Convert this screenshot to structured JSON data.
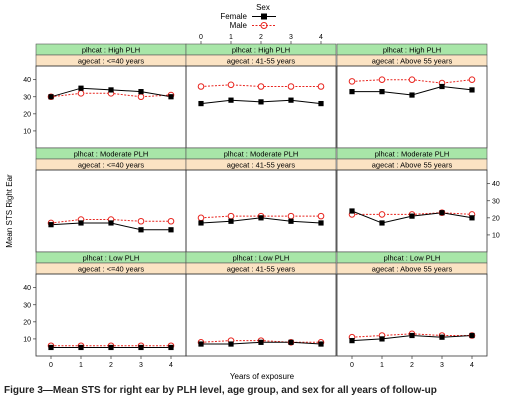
{
  "chart_data": {
    "type": "line",
    "legend": {
      "title": "Sex",
      "placement": "top-center",
      "entries": [
        {
          "name": "Female",
          "color": "#000000",
          "marker": "filled-square",
          "line": "solid"
        },
        {
          "name": "Male",
          "color": "#e8251f",
          "marker": "open-circle",
          "line": "dashed"
        }
      ]
    },
    "xlabel": "Years of exposure",
    "ylabel": "Mean STS Right Ear",
    "x": [
      0,
      1,
      2,
      3,
      4
    ],
    "x_ticks": [
      "0",
      "1",
      "2",
      "3",
      "4"
    ],
    "ylim": [
      0,
      48
    ],
    "y_ticks": [
      "10",
      "20",
      "30",
      "40"
    ],
    "y_tick_values": [
      10,
      20,
      30,
      40
    ],
    "strip_colors": {
      "plhcat": "#a8e6a8",
      "agecat": "#fbe3c3"
    },
    "panels": [
      {
        "plhcat": "plhcat : High PLH",
        "agecat": "agecat : <=40 years",
        "series": [
          {
            "name": "Female",
            "values": [
              30,
              35,
              34,
              33,
              30
            ]
          },
          {
            "name": "Male",
            "values": [
              30,
              32,
              32,
              30,
              31
            ]
          }
        ]
      },
      {
        "plhcat": "plhcat : High PLH",
        "agecat": "agecat : 41-55 years",
        "series": [
          {
            "name": "Female",
            "values": [
              26,
              28,
              27,
              28,
              26
            ]
          },
          {
            "name": "Male",
            "values": [
              36,
              37,
              36,
              36,
              36
            ]
          }
        ]
      },
      {
        "plhcat": "plhcat : High PLH",
        "agecat": "agecat : Above 55 years",
        "series": [
          {
            "name": "Female",
            "values": [
              33,
              33,
              31,
              36,
              34
            ]
          },
          {
            "name": "Male",
            "values": [
              39,
              40,
              40,
              38,
              40
            ]
          }
        ]
      },
      {
        "plhcat": "plhcat : Moderate PLH",
        "agecat": "agecat : <=40 years",
        "series": [
          {
            "name": "Female",
            "values": [
              16,
              17,
              17,
              13,
              13
            ]
          },
          {
            "name": "Male",
            "values": [
              17,
              19,
              19,
              18,
              18
            ]
          }
        ]
      },
      {
        "plhcat": "plhcat : Moderate PLH",
        "agecat": "agecat : 41-55 years",
        "series": [
          {
            "name": "Female",
            "values": [
              17,
              18,
              20,
              18,
              17
            ]
          },
          {
            "name": "Male",
            "values": [
              20,
              21,
              21,
              21,
              21
            ]
          }
        ]
      },
      {
        "plhcat": "plhcat : Moderate PLH",
        "agecat": "agecat : Above 55 years",
        "series": [
          {
            "name": "Female",
            "values": [
              24,
              17,
              21,
              23,
              20
            ]
          },
          {
            "name": "Male",
            "values": [
              22,
              22,
              22,
              23,
              22
            ]
          }
        ]
      },
      {
        "plhcat": "plhcat : Low PLH",
        "agecat": "agecat : <=40 years",
        "series": [
          {
            "name": "Female",
            "values": [
              5,
              5,
              5,
              5,
              5
            ]
          },
          {
            "name": "Male",
            "values": [
              6,
              6,
              6,
              6,
              6
            ]
          }
        ]
      },
      {
        "plhcat": "plhcat : Low PLH",
        "agecat": "agecat : 41-55 years",
        "series": [
          {
            "name": "Female",
            "values": [
              7,
              7,
              8,
              8,
              7
            ]
          },
          {
            "name": "Male",
            "values": [
              8,
              9,
              9,
              8,
              8
            ]
          }
        ]
      },
      {
        "plhcat": "plhcat : Low PLH",
        "agecat": "agecat : Above 55 years",
        "series": [
          {
            "name": "Female",
            "values": [
              9,
              10,
              12,
              11,
              12
            ]
          },
          {
            "name": "Male",
            "values": [
              11,
              12,
              13,
              12,
              12
            ]
          }
        ]
      }
    ]
  },
  "caption": "Figure 3—Mean STS for right ear by PLH level, age group, and sex for all years of follow-up"
}
